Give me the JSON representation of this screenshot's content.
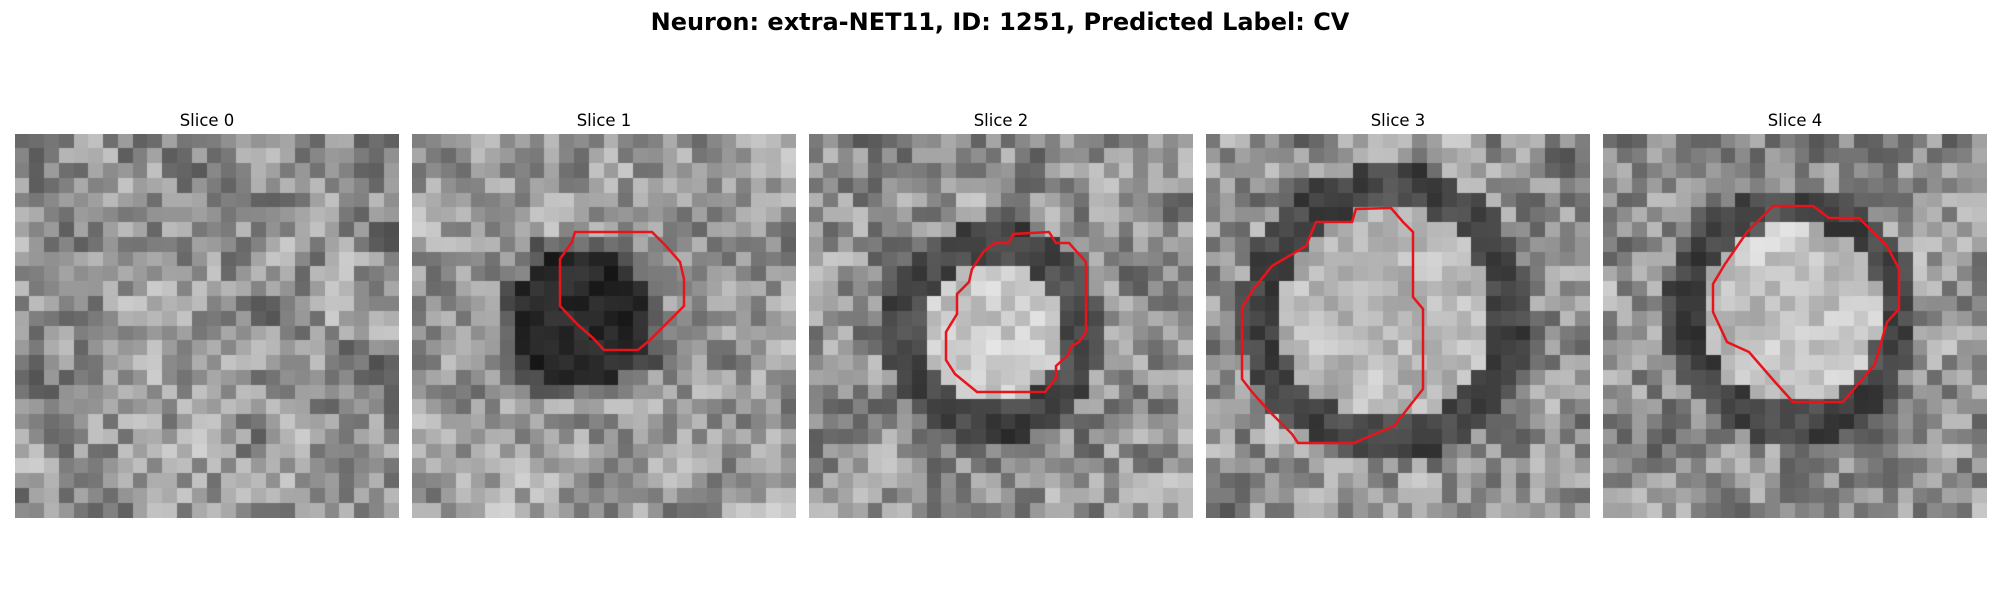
{
  "figure": {
    "title": "Neuron: extra-NET11, ID: 1251, Predicted Label: CV"
  },
  "panels": [
    {
      "title": "Slice 0",
      "has_contour": false
    },
    {
      "title": "Slice 1",
      "has_contour": true
    },
    {
      "title": "Slice 2",
      "has_contour": true
    },
    {
      "title": "Slice 3",
      "has_contour": true
    },
    {
      "title": "Slice 4",
      "has_contour": true
    }
  ],
  "colors": {
    "contour": "#e8141b",
    "background": "#ffffff"
  }
}
